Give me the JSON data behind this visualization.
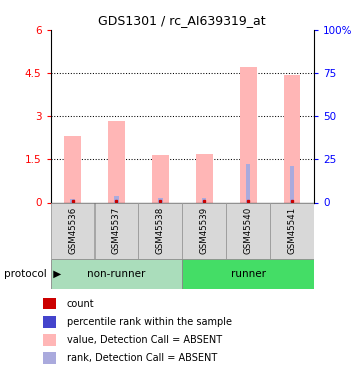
{
  "title": "GDS1301 / rc_AI639319_at",
  "samples": [
    "GSM45536",
    "GSM45537",
    "GSM45538",
    "GSM45539",
    "GSM45540",
    "GSM45541"
  ],
  "values": [
    2.3,
    2.85,
    1.65,
    1.7,
    4.72,
    4.42
  ],
  "ranks_pct": [
    2.2,
    3.7,
    2.5,
    2.8,
    22.5,
    21.0
  ],
  "bar_color": "#FFB6B6",
  "rank_color": "#AAAADD",
  "count_color": "#CC0000",
  "rank_dot_color": "#5555CC",
  "ylim_left": [
    0,
    6
  ],
  "ylim_right": [
    0,
    100
  ],
  "yticks_left": [
    0,
    1.5,
    3.0,
    4.5,
    6
  ],
  "yticks_left_labels": [
    "0",
    "1.5",
    "3",
    "4.5",
    "6"
  ],
  "yticks_right": [
    0,
    25,
    50,
    75,
    100
  ],
  "yticks_right_labels": [
    "0",
    "25",
    "50",
    "75",
    "100%"
  ],
  "nonrunner_color": "#AADDBB",
  "runner_color": "#44DD66",
  "legend_items": [
    {
      "label": "count",
      "color": "#CC0000"
    },
    {
      "label": "percentile rank within the sample",
      "color": "#4444CC"
    },
    {
      "label": "value, Detection Call = ABSENT",
      "color": "#FFB6B6"
    },
    {
      "label": "rank, Detection Call = ABSENT",
      "color": "#AAAADD"
    }
  ],
  "fig_width": 3.61,
  "fig_height": 3.75,
  "dpi": 100
}
